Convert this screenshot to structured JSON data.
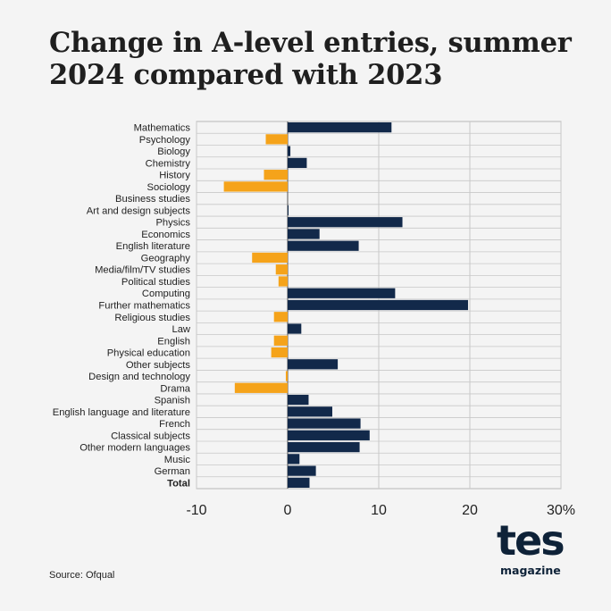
{
  "title": "Change in A-level entries, summer 2024 compared with 2023",
  "source": "Source: Ofqual",
  "logo": {
    "main": "tes",
    "sub": "magazine"
  },
  "colors": {
    "positive": "#12294a",
    "negative": "#f5a31a",
    "grid": "#c8c8c8",
    "frame": "#b8b8b8"
  },
  "chart_data": {
    "type": "bar",
    "orientation": "horizontal",
    "title": "Change in A-level entries, summer 2024 compared with 2023",
    "xlim": [
      -10,
      30
    ],
    "x_ticks": [
      -10,
      0,
      10,
      20,
      30
    ],
    "x_tick_labels": [
      "-10",
      "0",
      "10",
      "20",
      "30%"
    ],
    "grid": true,
    "categories": [
      "Mathematics",
      "Psychology",
      "Biology",
      "Chemistry",
      "History",
      "Sociology",
      "Business studies",
      "Art and design subjects",
      "Physics",
      "Economics",
      "English literature",
      "Geography",
      "Media/film/TV studies",
      "Political studies",
      "Computing",
      "Further mathematics",
      "Religious studies",
      "Law",
      "English",
      "Physical education",
      "Other subjects",
      "Design and technology",
      "Drama",
      "Spanish",
      "English language and literature",
      "French",
      "Classical subjects",
      "Other modern languages",
      "Music",
      "German",
      "Total"
    ],
    "values": [
      11.4,
      -2.4,
      0.3,
      2.1,
      -2.6,
      -7.0,
      0.0,
      0.1,
      12.6,
      3.5,
      7.8,
      -3.9,
      -1.3,
      -1.0,
      11.8,
      19.8,
      -1.5,
      1.5,
      -1.5,
      -1.8,
      5.5,
      -0.2,
      -5.8,
      2.3,
      4.9,
      8.0,
      9.0,
      7.9,
      1.3,
      3.1,
      2.4
    ],
    "bold_categories": [
      "Total"
    ]
  }
}
